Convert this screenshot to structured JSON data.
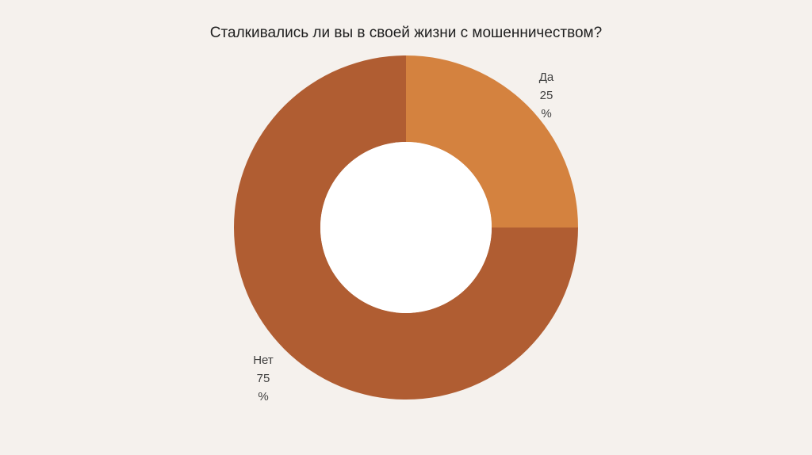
{
  "chart_data": {
    "type": "pie",
    "title": "Сталкивались ли вы в своей жизни с мошенничеством?",
    "donut": true,
    "slices": [
      {
        "label": "Да",
        "value": 25,
        "value_text": "25",
        "unit": "%",
        "color": "#d4823f"
      },
      {
        "label": "Нет",
        "value": 75,
        "value_text": "75",
        "unit": "%",
        "color": "#b05d32"
      }
    ]
  }
}
